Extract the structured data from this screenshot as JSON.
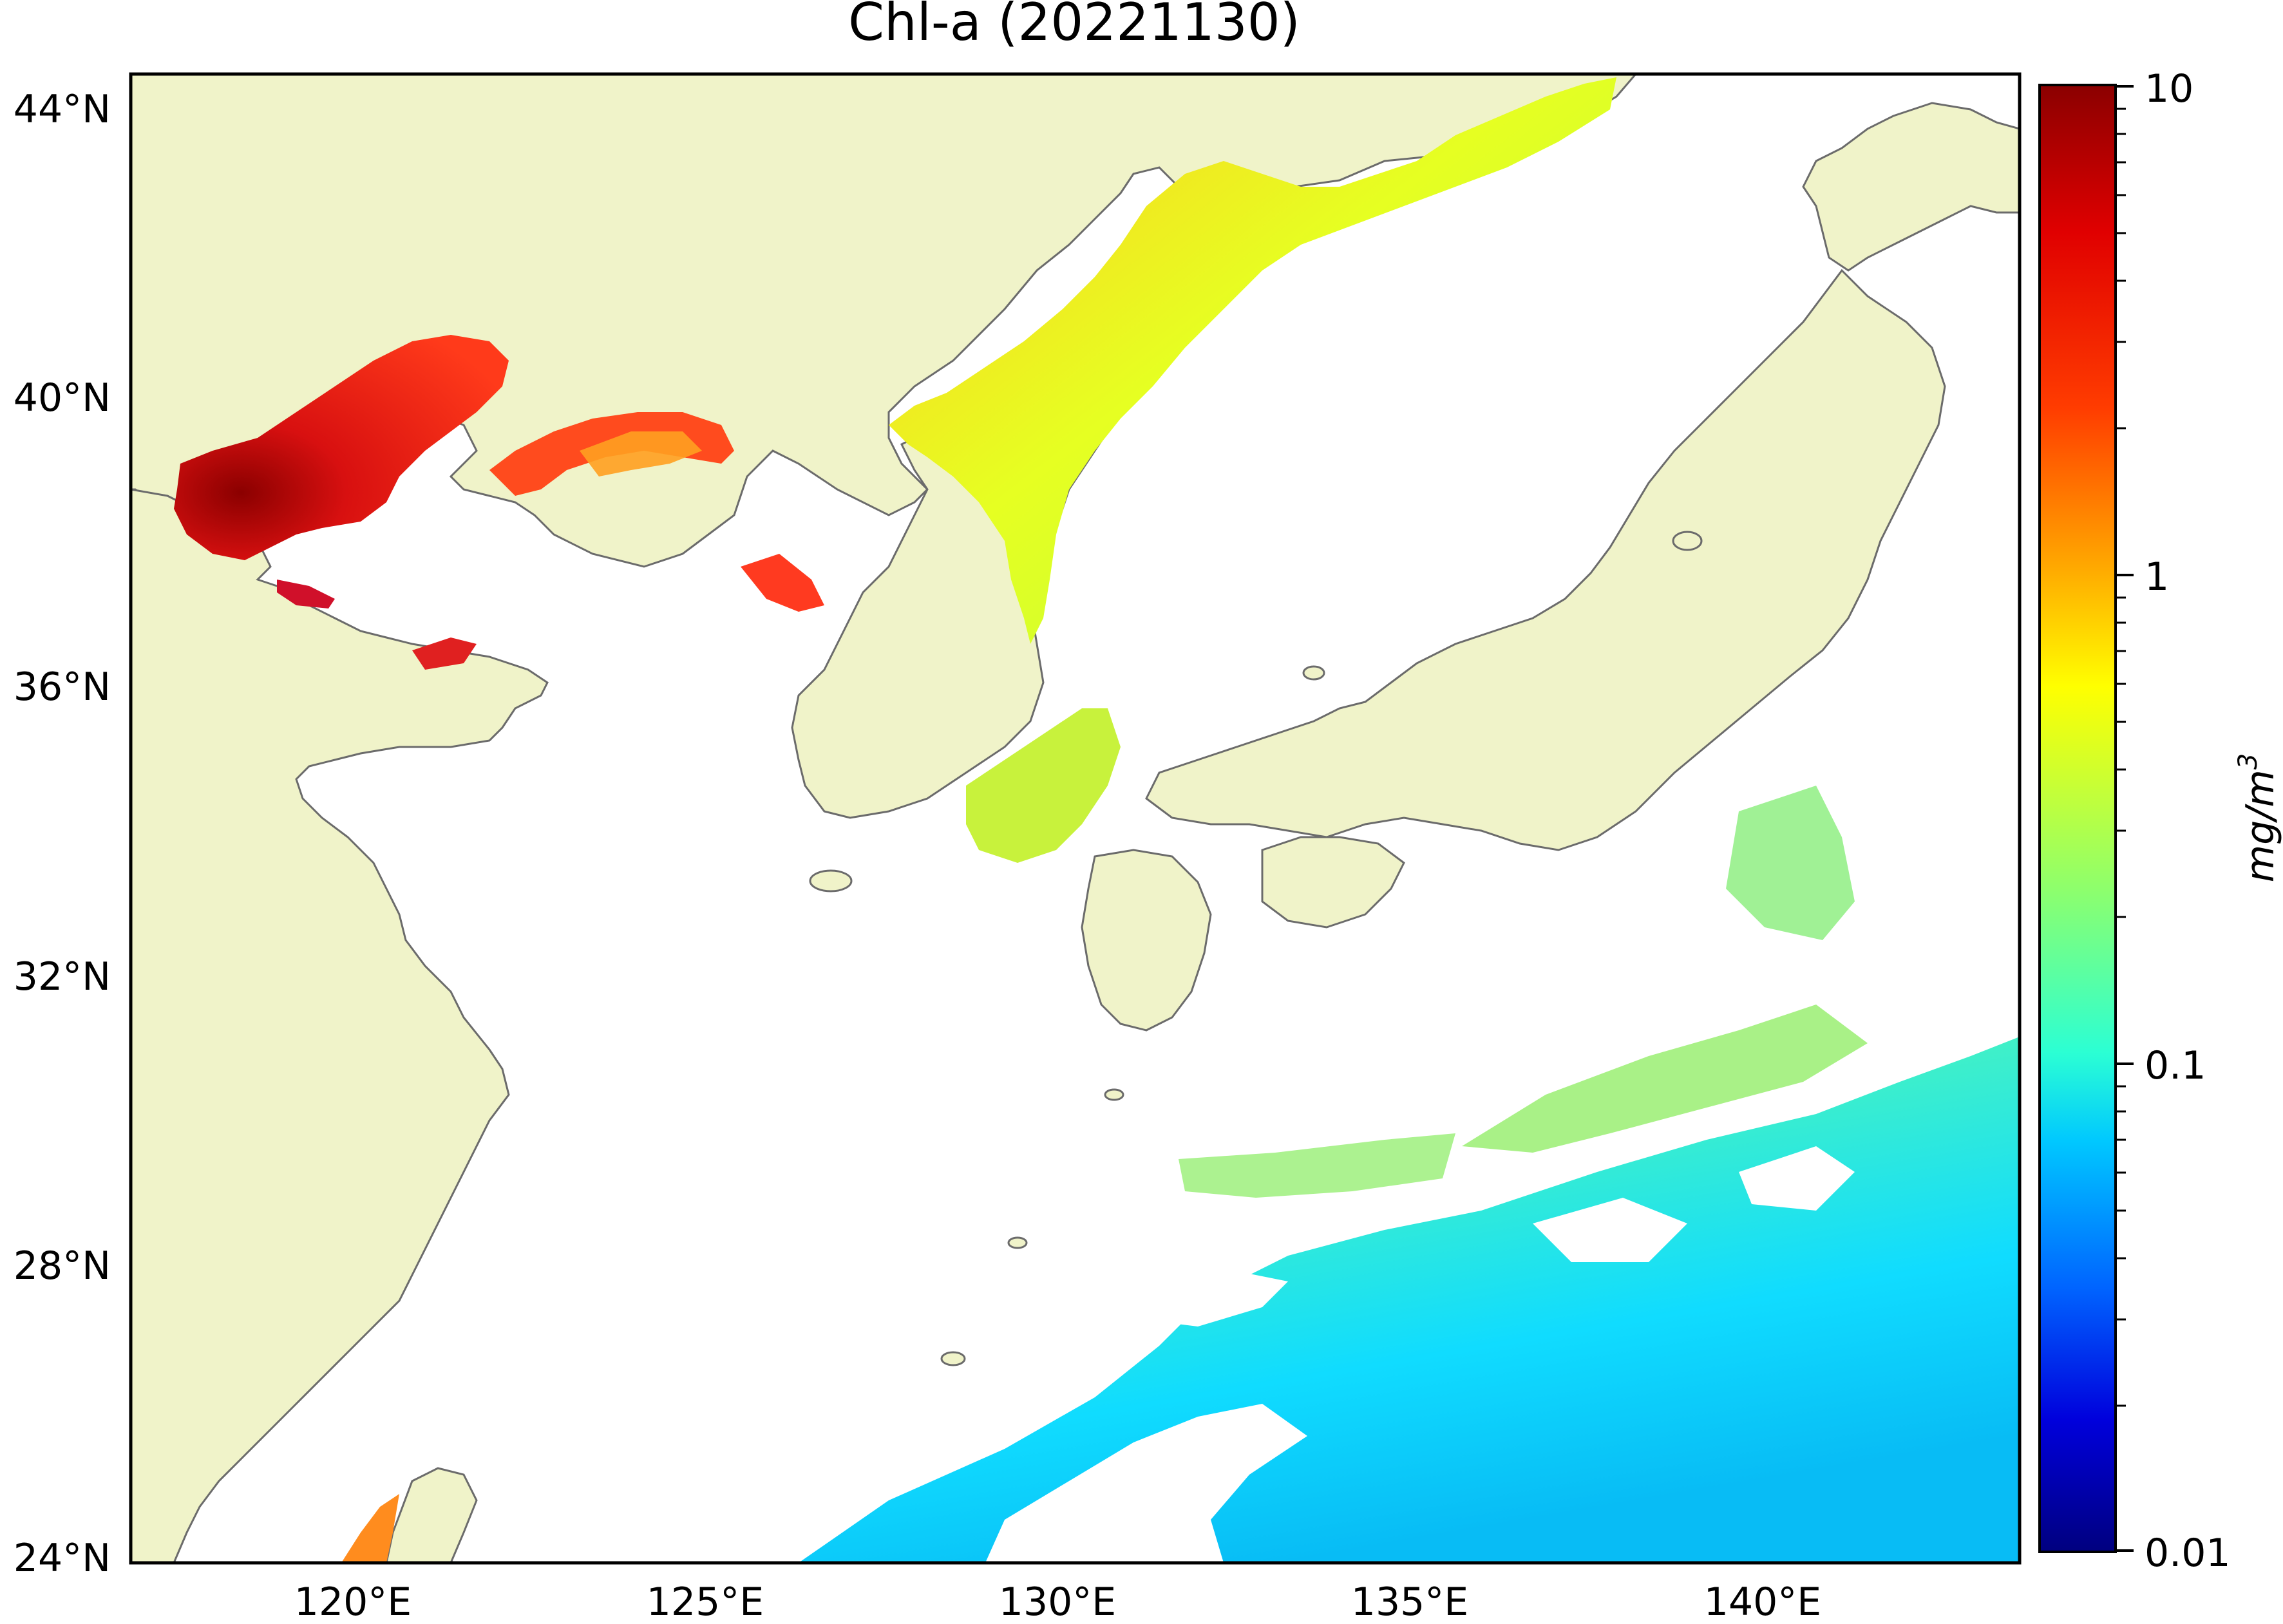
{
  "title": "Chl-a (20221130)",
  "colorbar": {
    "label": "mg/m",
    "label_superscript": "3",
    "ticks": [
      "10",
      "1",
      "0.1",
      "0.01"
    ],
    "colors": [
      "#8b0000",
      "#ff2a00",
      "#ff8c00",
      "#ffff00",
      "#a5ff52",
      "#3affbe",
      "#00d4ff",
      "#0070ff",
      "#0000cd",
      "#00008b"
    ]
  },
  "map": {
    "lat_labels": [
      "44°N",
      "40°N",
      "36°N",
      "32°N",
      "28°N",
      "24°N"
    ],
    "lon_labels": [
      "120°E",
      "125°E",
      "130°E",
      "135°E",
      "140°E"
    ],
    "extent": {
      "lon": [
        116.2,
        143.0
      ],
      "lat": [
        23.9,
        44.6
      ]
    },
    "land_color": "#f0f3c9",
    "coast_color": "#6b6b6b",
    "ocean_color": "#ffffff"
  }
}
